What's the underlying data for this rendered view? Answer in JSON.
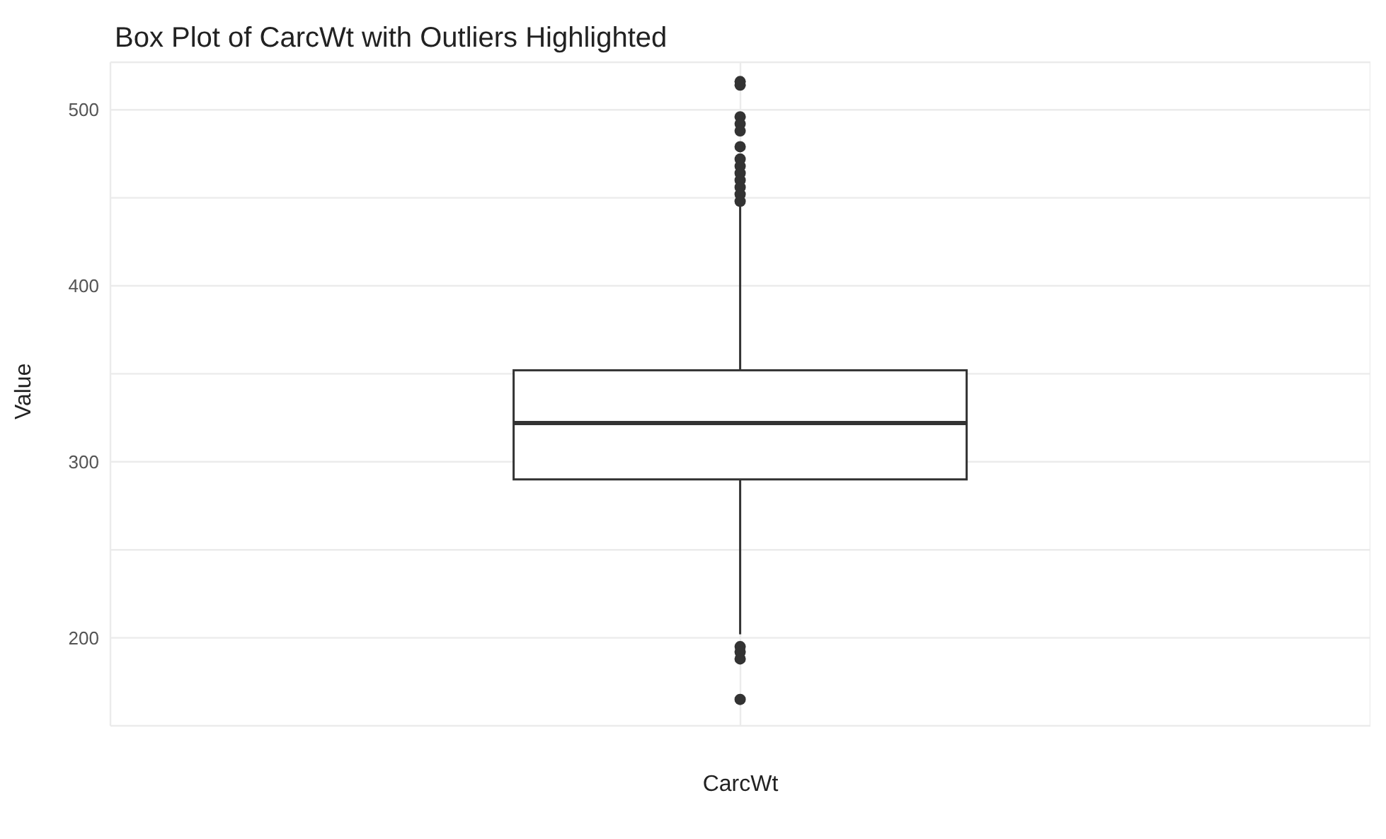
{
  "chart_data": {
    "type": "box",
    "title": "Box Plot of CarcWt with Outliers Highlighted",
    "xlabel": "CarcWt",
    "ylabel": "Value",
    "categories": [
      null
    ],
    "boxes": [
      {
        "low": 202,
        "q1": 290,
        "median": 322,
        "q3": 352,
        "high": 446,
        "outliers": [
          516,
          514,
          496,
          492,
          488,
          479,
          472,
          468,
          464,
          460,
          456,
          452,
          448,
          195,
          192,
          188,
          165
        ]
      }
    ],
    "ylim": [
      150,
      527
    ],
    "yticks": [
      {
        "value": 150,
        "label": null
      },
      200,
      {
        "value": 250,
        "label": null
      },
      300,
      {
        "value": 350,
        "label": null
      },
      400,
      {
        "value": 450,
        "label": null
      },
      500
    ],
    "grid": true,
    "color": "#333333"
  }
}
